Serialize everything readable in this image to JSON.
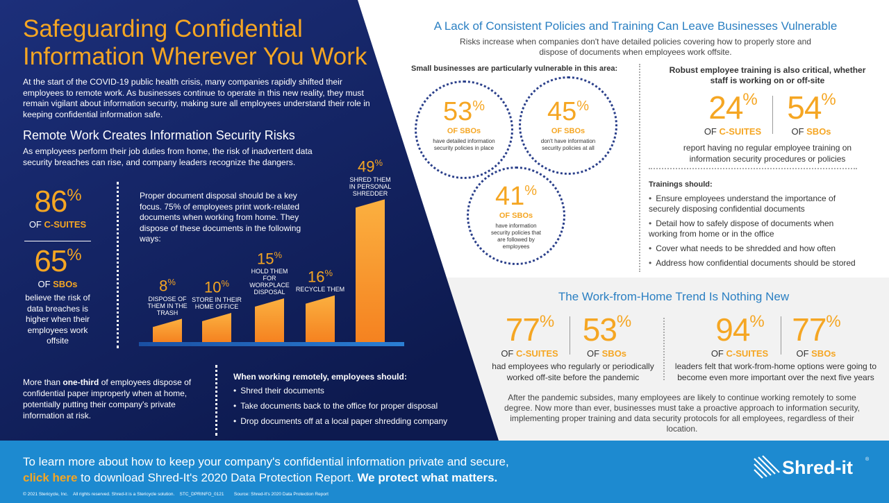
{
  "title_line1": "Safeguarding Confidential",
  "title_line2": "Information Wherever You Work",
  "intro": "At the start of the COVID-19 public health crisis, many companies rapidly shifted their employees to remote work. As businesses continue to operate in this new reality, they must remain vigilant about information security, making sure all employees understand their role in keeping confidential information safe.",
  "remote": {
    "heading": "Remote Work Creates Information Security Risks",
    "text": "As employees perform their job duties from home, the risk of inadvertent data security breaches can rise, and company leaders recognize the dangers.",
    "stat1_value": "86",
    "stat1_of": "OF",
    "stat1_label": "C-SUITES",
    "stat2_value": "65",
    "stat2_of": "OF",
    "stat2_label": "SBOs",
    "believe": "believe the risk of data breaches is higher when their employees work offsite",
    "disposal_text": "Proper document disposal should be a key focus. 75% of employees print work-related documents when working from home. They dispose of these documents in the following ways:",
    "pct_sign": "%"
  },
  "chart_data": {
    "type": "bar",
    "categories": [
      "DISPOSE OF THEM IN THE TRASH",
      "STORE IN THEIR HOME OFFICE",
      "HOLD THEM FOR WORKPLACE DISPOSAL",
      "RECYCLE THEM",
      "SHRED THEM IN PERSONAL SHREDDER"
    ],
    "values": [
      8,
      10,
      15,
      16,
      49
    ],
    "ylim": [
      0,
      50
    ],
    "colors": [
      "#f58220",
      "#fbb040"
    ]
  },
  "one_third": {
    "pre": "More than ",
    "bold": "one-third",
    "post": " of employees dispose of confidential paper improperly when at home, potentially putting their company's private information at risk."
  },
  "remote_should": {
    "heading": "When working remotely, employees should:",
    "items": [
      "Shred their documents",
      "Take documents back to the office for proper disposal",
      "Drop documents off at a local paper shredding company"
    ]
  },
  "policies": {
    "heading": "A Lack of Consistent Policies and Training Can Leave Businesses Vulnerable",
    "sub": "Risks increase when companies don't have detailed policies covering how to properly store and dispose of documents when employees work offsite.",
    "small_heading": "Small businesses are particularly vulnerable in this area:",
    "c1_value": "53",
    "c1_label": "OF SBOs",
    "c1_text": "have detailed information security policies in place",
    "c2_value": "45",
    "c2_label": "OF SBOs",
    "c2_text": "don't have information security policies at all",
    "c3_value": "41",
    "c3_label": "OF SBOs",
    "c3_text": "have information security policies that are followed by employees",
    "training_heading": "Robust employee training is also critical, whether staff is working on or off-site",
    "t1_value": "24",
    "t1_of": "OF",
    "t1_label": "C-SUITES",
    "t2_value": "54",
    "t2_of": "OF",
    "t2_label": "SBOs",
    "t_text": "report having no regular employee training on information security procedures or policies",
    "trainings_heading": "Trainings should:",
    "trainings": [
      "Ensure employees understand the importance of securely disposing confidential documents",
      "Detail how to safely dispose of documents when working from home or in the office",
      "Cover what needs to be shredded and how often",
      "Address how confidential documents should be stored"
    ]
  },
  "wfh": {
    "heading": "The Work-from-Home Trend Is Nothing New",
    "a_value": "77",
    "a_of": "OF",
    "a_label": "C-SUITES",
    "b_value": "53",
    "b_of": "OF",
    "b_label": "SBOs",
    "ab_text": "had employees who regularly or periodically worked off-site before the pandemic",
    "c_value": "94",
    "c_of": "OF",
    "c_label": "C-SUITES",
    "d_value": "77",
    "d_of": "OF",
    "d_label": "SBOs",
    "cd_text": "leaders felt that work-from-home options were going to become even more important over the next five years",
    "closing": "After the pandemic subsides, many employees are likely to continue working remotely to some degree. Now more than ever, businesses must take a proactive approach to information security, implementing proper training and data security protocols for all employees, regardless of their location."
  },
  "footer": {
    "line1": "To learn more about how to keep your company's confidential information private and secure,",
    "click": "click here",
    "line2_mid": " to download Shred-It's 2020 Data Protection Report. ",
    "line2_bold": "We protect what matters.",
    "legal": "© 2021 Stericycle, Inc.    All rights reserved. Shred-it is a Stericycle solution.    STC_DPRINFO_0121        Source: Shred-It's 2020 Data Protection Report",
    "logo": "Shred-it",
    "logo_mark": "®"
  }
}
